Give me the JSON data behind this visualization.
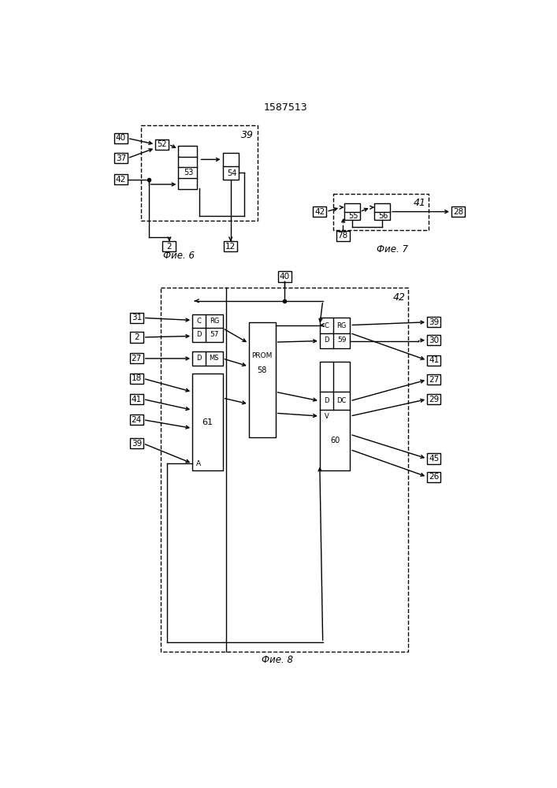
{
  "title": "1587513",
  "fig6_label": "Фие. 6",
  "fig7_label": "Фие. 7",
  "fig8_label": "Фие. 8",
  "bg_color": "#ffffff",
  "lc": "#000000",
  "lw": 1.0
}
